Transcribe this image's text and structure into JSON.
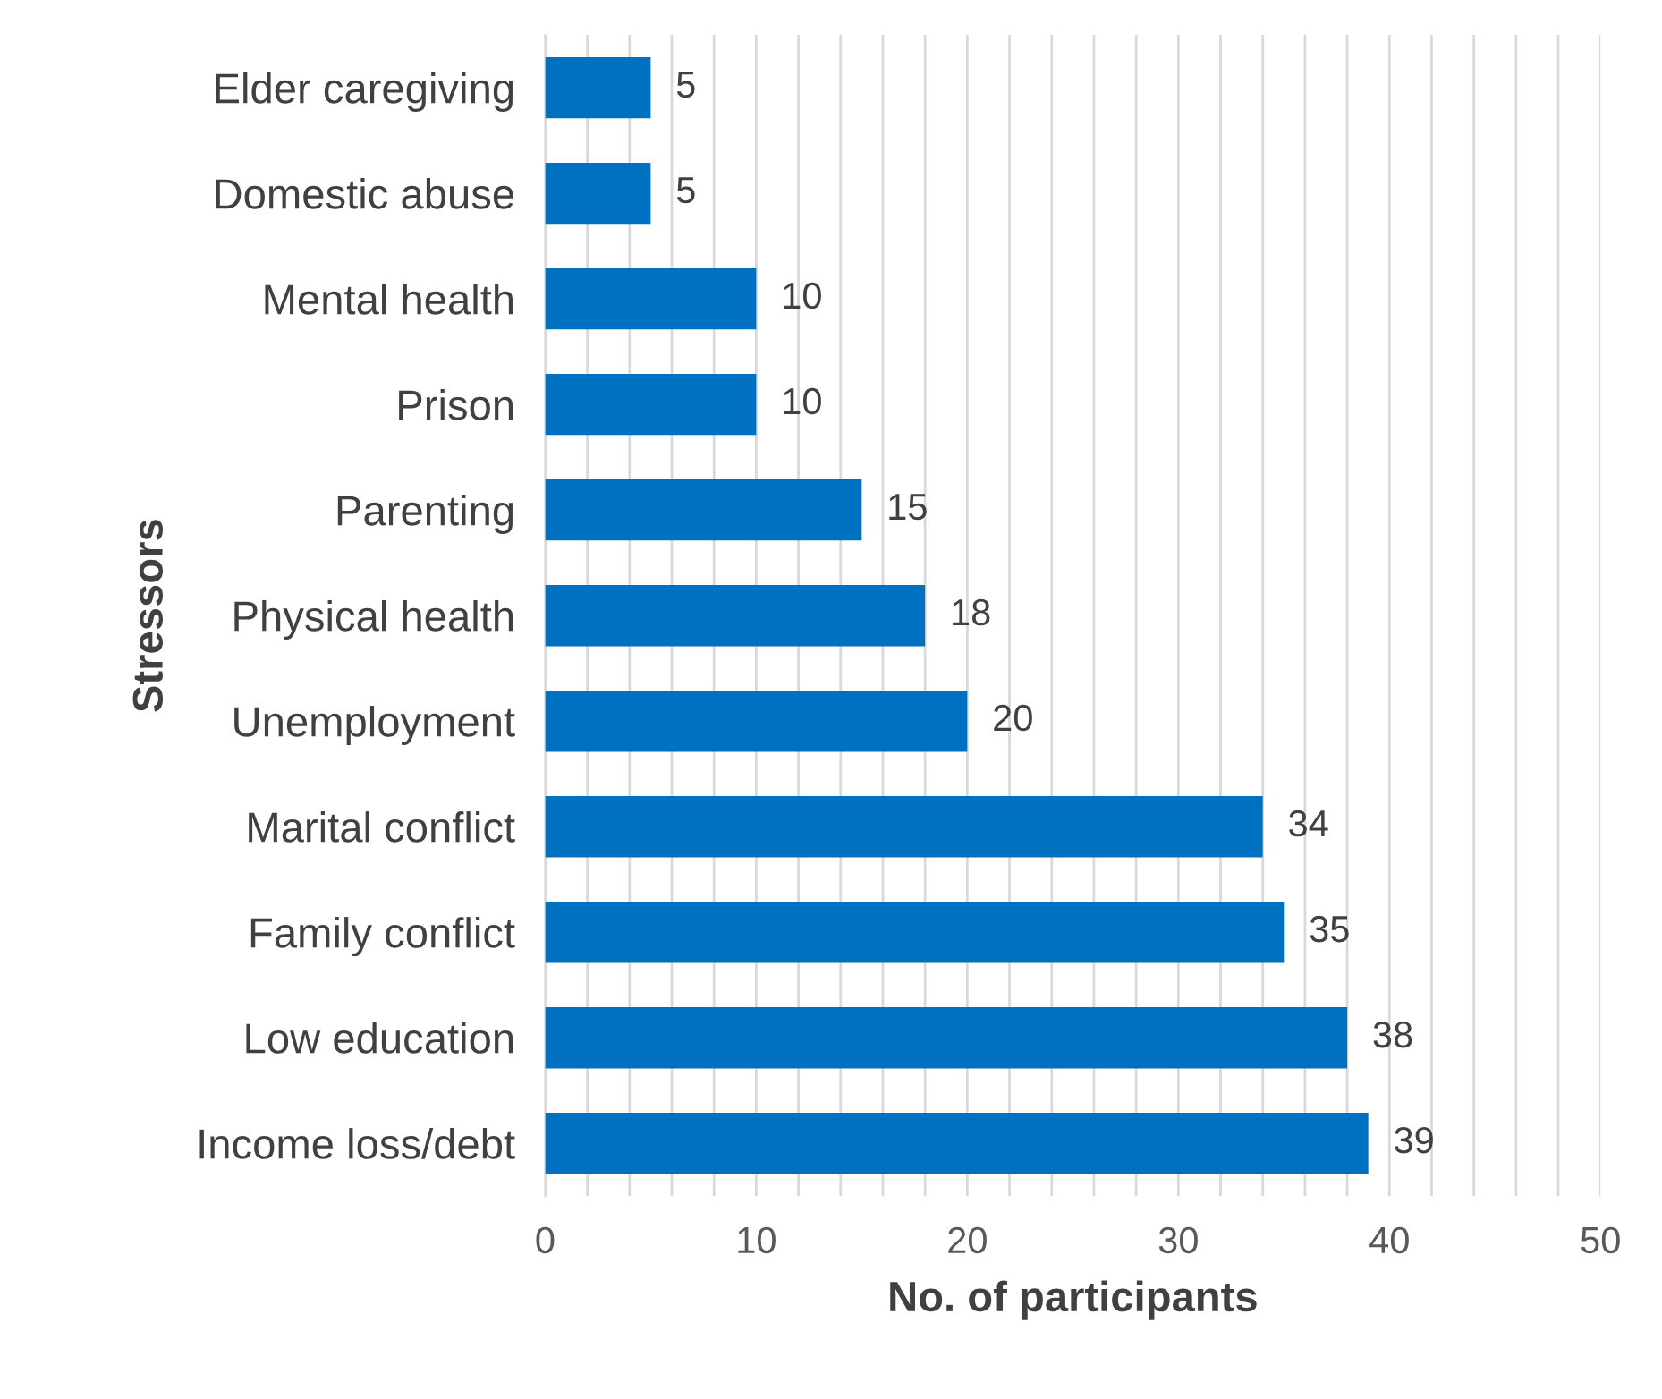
{
  "chart_data": {
    "type": "bar",
    "orientation": "horizontal",
    "xlabel": "No. of participants",
    "ylabel": "Stressors",
    "categories": [
      "Elder caregiving",
      "Domestic abuse",
      "Mental health",
      "Prison",
      "Parenting",
      "Physical health",
      "Unemployment",
      "Marital conflict",
      "Family conflict",
      "Low education",
      "Income loss/debt"
    ],
    "values": [
      5,
      5,
      10,
      10,
      15,
      18,
      20,
      34,
      35,
      38,
      39
    ],
    "color": "#0070c0",
    "xlim": [
      0,
      50
    ],
    "xticks": [
      0,
      {
        "value": 2,
        "label": null
      },
      {
        "value": 4,
        "label": null
      },
      {
        "value": 6,
        "label": null
      },
      {
        "value": 8,
        "label": null
      },
      10,
      {
        "value": 12,
        "label": null
      },
      {
        "value": 14,
        "label": null
      },
      {
        "value": 16,
        "label": null
      },
      {
        "value": 18,
        "label": null
      },
      20,
      {
        "value": 22,
        "label": null
      },
      {
        "value": 24,
        "label": null
      },
      {
        "value": 26,
        "label": null
      },
      {
        "value": 28,
        "label": null
      },
      30,
      {
        "value": 32,
        "label": null
      },
      {
        "value": 34,
        "label": null
      },
      {
        "value": 36,
        "label": null
      },
      {
        "value": 38,
        "label": null
      },
      40,
      {
        "value": 42,
        "label": null
      },
      {
        "value": 44,
        "label": null
      },
      {
        "value": 46,
        "label": null
      },
      {
        "value": 48,
        "label": null
      },
      50
    ],
    "grid": "x",
    "data_labels": true
  }
}
